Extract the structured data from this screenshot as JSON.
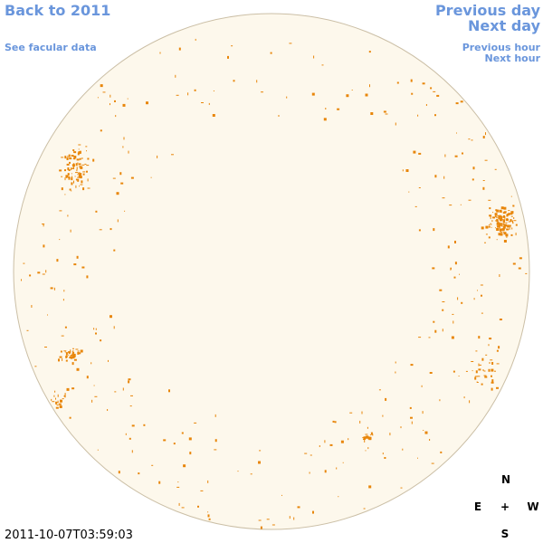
{
  "header": {
    "back_link": "Back to 2011",
    "facular_link": "See facular data",
    "previous_day": "Previous day",
    "next_day": "Next day",
    "previous_hour": "Previous hour",
    "next_hour": "Next hour"
  },
  "timestamp": "2011-10-07T03:59:03",
  "compass": {
    "north": "N",
    "east": "E",
    "center": "+",
    "west": "W",
    "south": "S"
  }
}
